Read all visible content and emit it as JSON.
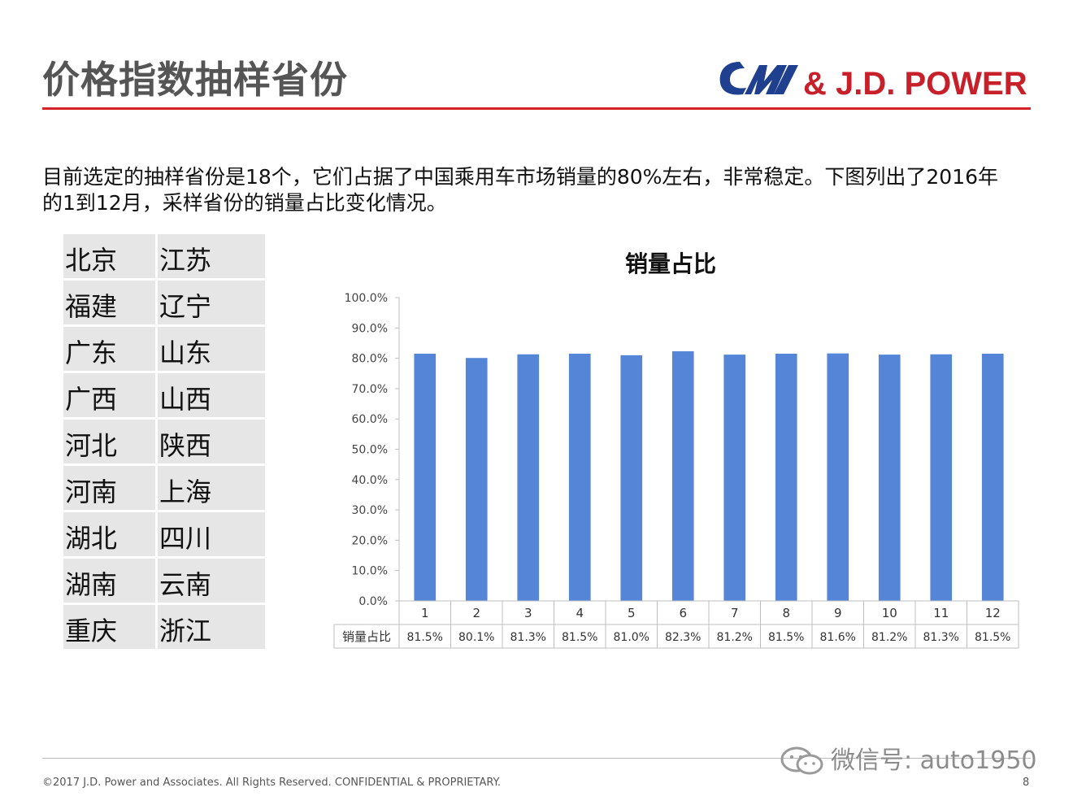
{
  "page": {
    "title": "价格指数抽样省份",
    "logo_text": "& J.D. POWER",
    "intro_lines": [
      "目前选定的抽样省份是18个，它们占据了中国乘用车市场销量的80%左右，非常稳定。下图列出了2016年",
      "的1到12月，采样省份的销量占比变化情况。"
    ],
    "provinces": [
      [
        "北京",
        "江苏"
      ],
      [
        "福建",
        "辽宁"
      ],
      [
        "广东",
        "山东"
      ],
      [
        "广西",
        "山西"
      ],
      [
        "河北",
        "陕西"
      ],
      [
        "河南",
        "上海"
      ],
      [
        "湖北",
        "四川"
      ],
      [
        "湖南",
        "云南"
      ],
      [
        "重庆",
        "浙江"
      ]
    ],
    "footer": "©2017 J.D. Power and Associates. All Rights Reserved. CONFIDENTIAL & PROPRIETARY.",
    "page_number": "8",
    "watermark": "微信号: auto1950",
    "colors": {
      "accent_red": "#d3222a",
      "bar_blue": "#5585d6",
      "logo_blue": "#1f3f8f"
    }
  },
  "chart_data": {
    "type": "bar",
    "title": "销量占比",
    "categories": [
      "1",
      "2",
      "3",
      "4",
      "5",
      "6",
      "7",
      "8",
      "9",
      "10",
      "11",
      "12"
    ],
    "series": [
      {
        "name": "销量占比",
        "values": [
          81.5,
          80.1,
          81.3,
          81.5,
          81.0,
          82.3,
          81.2,
          81.5,
          81.6,
          81.2,
          81.3,
          81.5
        ]
      }
    ],
    "value_labels": [
      "81.5%",
      "80.1%",
      "81.3%",
      "81.5%",
      "81.0%",
      "82.3%",
      "81.2%",
      "81.5%",
      "81.6%",
      "81.2%",
      "81.3%",
      "81.5%"
    ],
    "yticks": [
      "0.0%",
      "10.0%",
      "20.0%",
      "30.0%",
      "40.0%",
      "50.0%",
      "60.0%",
      "70.0%",
      "80.0%",
      "90.0%",
      "100.0%"
    ],
    "ylim": [
      0,
      100
    ],
    "data_table": true,
    "grid": false
  }
}
